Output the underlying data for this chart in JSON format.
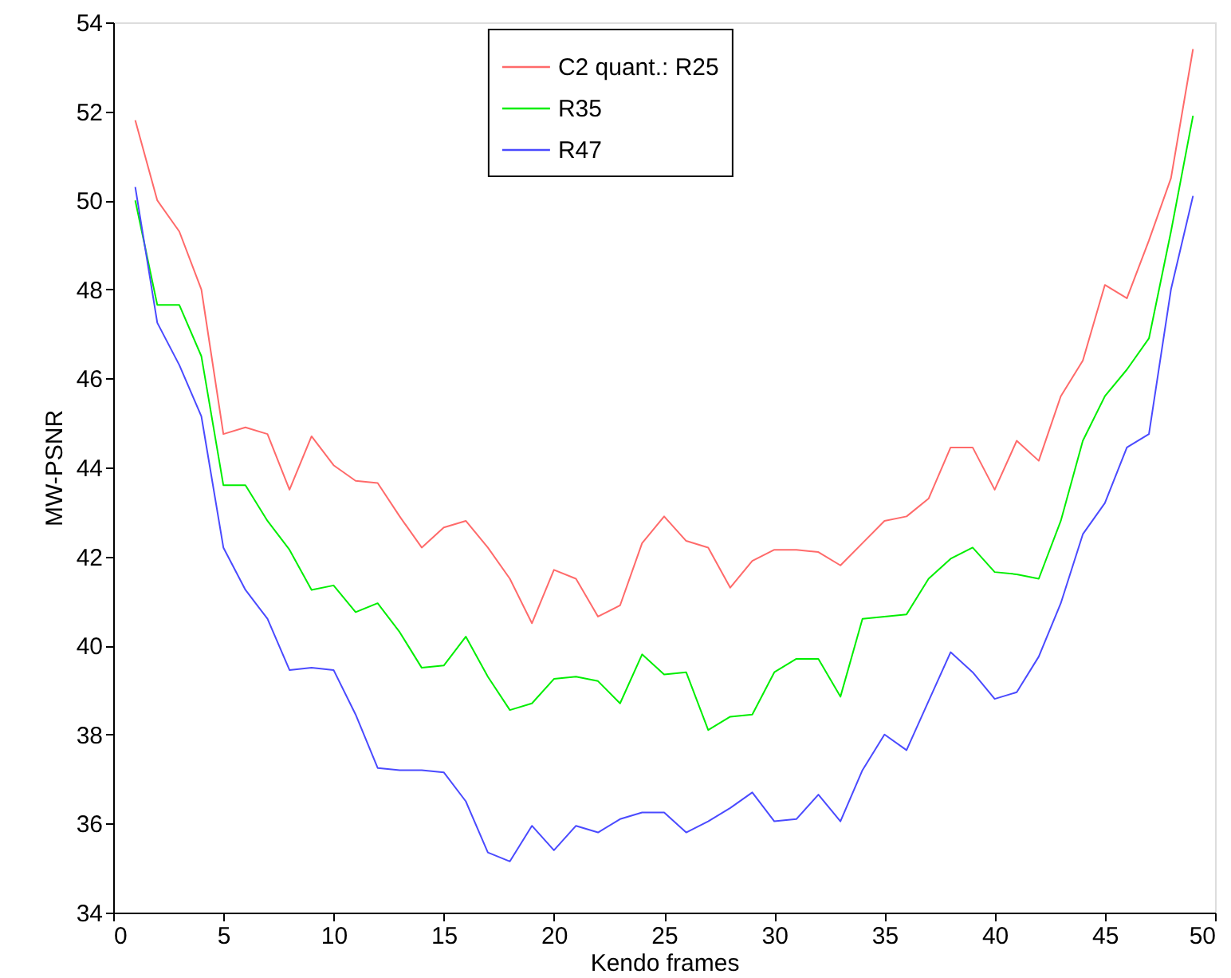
{
  "chart_data": {
    "type": "line",
    "xlabel": "Kendo frames",
    "ylabel": "MW-PSNR",
    "x": [
      1,
      2,
      3,
      4,
      5,
      6,
      7,
      8,
      9,
      10,
      11,
      12,
      13,
      14,
      15,
      16,
      17,
      18,
      19,
      20,
      21,
      22,
      23,
      24,
      25,
      26,
      27,
      28,
      29,
      30,
      31,
      32,
      33,
      34,
      35,
      36,
      37,
      38,
      39,
      40,
      41,
      42,
      43,
      44,
      45,
      46,
      47,
      48,
      49
    ],
    "series": [
      {
        "name": "C2 quant.: R25",
        "color": "#ff6a6a",
        "values": [
          51.8,
          50.0,
          49.3,
          48.0,
          44.75,
          44.9,
          44.75,
          43.5,
          44.7,
          44.05,
          43.7,
          43.65,
          42.9,
          42.2,
          42.65,
          42.8,
          42.2,
          41.5,
          40.5,
          41.7,
          41.5,
          40.65,
          40.9,
          42.3,
          42.9,
          42.35,
          42.2,
          41.3,
          41.9,
          42.15,
          42.15,
          42.1,
          41.8,
          42.3,
          42.8,
          42.9,
          43.3,
          44.45,
          44.45,
          43.5,
          44.6,
          44.15,
          45.6,
          46.4,
          48.1,
          47.8,
          49.1,
          50.5,
          53.4
        ]
      },
      {
        "name": "R35",
        "color": "#00ee00",
        "values": [
          50.0,
          47.65,
          47.65,
          46.5,
          43.6,
          43.6,
          42.8,
          42.15,
          41.25,
          41.35,
          40.75,
          40.95,
          40.3,
          39.5,
          39.55,
          40.2,
          39.3,
          38.55,
          38.7,
          39.25,
          39.3,
          39.2,
          38.7,
          39.8,
          39.35,
          39.4,
          38.1,
          38.4,
          38.45,
          39.4,
          39.7,
          39.7,
          38.85,
          40.6,
          40.65,
          40.7,
          41.5,
          41.95,
          42.2,
          41.65,
          41.6,
          41.5,
          42.8,
          44.6,
          45.6,
          46.2,
          46.9,
          49.3,
          51.9
        ]
      },
      {
        "name": "R47",
        "color": "#4a4aff",
        "values": [
          50.3,
          47.25,
          46.3,
          45.15,
          42.2,
          41.25,
          40.6,
          39.45,
          39.5,
          39.45,
          38.45,
          37.25,
          37.2,
          37.2,
          37.15,
          36.5,
          35.35,
          35.15,
          35.95,
          35.4,
          35.95,
          35.8,
          36.1,
          36.25,
          36.25,
          35.8,
          36.05,
          36.35,
          36.7,
          36.05,
          36.1,
          36.65,
          36.05,
          37.2,
          38.0,
          37.65,
          38.75,
          39.85,
          39.4,
          38.8,
          38.95,
          39.75,
          40.95,
          42.5,
          43.2,
          44.45,
          44.75,
          48.0,
          50.1
        ]
      }
    ],
    "xlim": [
      0,
      50
    ],
    "xticks": [
      0,
      5,
      10,
      15,
      20,
      25,
      30,
      35,
      40,
      45,
      50
    ],
    "ylim": [
      34,
      54
    ],
    "yticks": [
      34,
      36,
      38,
      40,
      42,
      44,
      46,
      48,
      50,
      52,
      54
    ],
    "grid": false,
    "legend": "top",
    "marker": "none",
    "line_style": "solid"
  }
}
